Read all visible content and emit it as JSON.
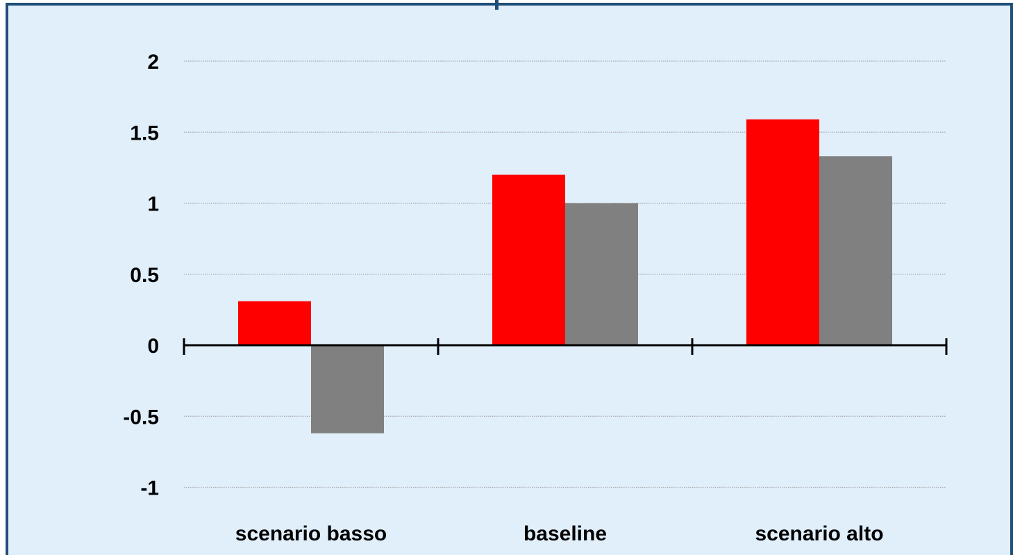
{
  "chart_data": {
    "type": "bar",
    "categories": [
      "scenario basso",
      "baseline",
      "scenario alto"
    ],
    "series": [
      {
        "color": "#ff0000",
        "values": [
          0.31,
          1.2,
          1.59
        ]
      },
      {
        "color": "#808080",
        "values": [
          -0.62,
          1.0,
          1.33
        ]
      }
    ],
    "yticks": [
      "2",
      "1.5",
      "1",
      "0.5",
      "0",
      "-0.5",
      "-1"
    ],
    "ytick_values": [
      2,
      1.5,
      1,
      0.5,
      0,
      -0.5,
      -1
    ],
    "ylim": [
      -1,
      2
    ],
    "grid": true,
    "legend": false,
    "title": "",
    "xlabel": "",
    "ylabel": ""
  },
  "colors": {
    "background": "#e1effb",
    "border": "#1f4e79",
    "gridline": "#a6a6a6",
    "axis": "#000000"
  }
}
